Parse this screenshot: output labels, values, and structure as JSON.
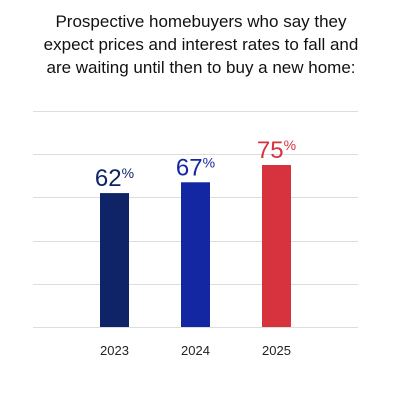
{
  "chart_data": {
    "type": "bar",
    "title_lines": [
      "Prospective homebuyers who say they",
      "expect prices and interest rates to fall and",
      "are waiting until then to buy a new home:"
    ],
    "categories": [
      "2023",
      "2024",
      "2025"
    ],
    "values": [
      62,
      67,
      75
    ],
    "value_suffix": "%",
    "bar_colors": [
      "#0e2466",
      "#1427a3",
      "#d6333e"
    ],
    "label_colors": [
      "#0e2466",
      "#1427a3",
      "#d6333e"
    ],
    "ylim": [
      0,
      100
    ],
    "grid": true,
    "gridline_color": "#dddddd",
    "xlabel": "",
    "ylabel": ""
  }
}
